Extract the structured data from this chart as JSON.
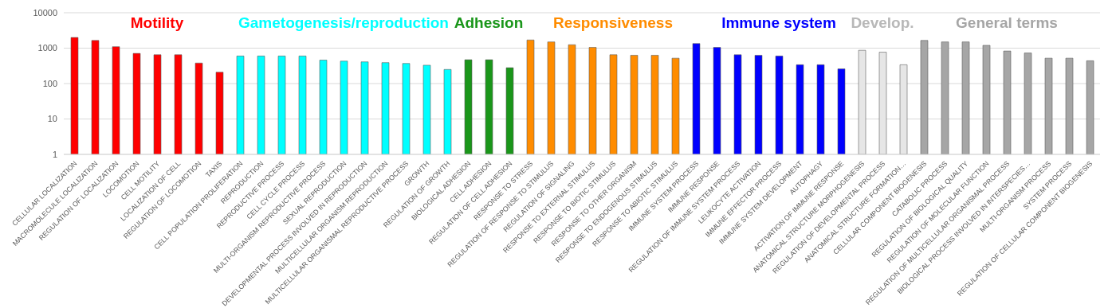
{
  "chart_data": {
    "type": "bar",
    "categories": [
      "CELLULAR LOCALIZATION",
      "MACROMOLECULE LOCALIZATION",
      "REGULATION OF LOCALIZATION",
      "LOCOMOTION",
      "CELL MOTILITY",
      "LOCALIZATION OF CELL",
      "REGULATION OF LOCOMOTION",
      "TAXIS",
      "CELL POPULATION PROLIFERATION",
      "REPRODUCTION",
      "REPRODUCTIVE PROCESS",
      "CELL CYCLE PROCESS",
      "MULTI-ORGANISM REPRODUCTIVE PROCESS",
      "SEXUAL REPRODUCTION",
      "DEVELOPMENTAL PROCESS INVOLVED IN REPRODUCTION",
      "MULTICELLULAR ORGANISM REPRODUCTION",
      "MULTICELLULAR ORGANISMAL REPRODUCTIVE PROCESS",
      "GROWTH",
      "REGULATION OF GROWTH",
      "BIOLOGICAL ADHESION",
      "CELL ADHESION",
      "REGULATION OF CELL ADHESION",
      "RESPONSE TO STRESS",
      "REGULATION OF RESPONSE TO STIMULUS",
      "REGULATION OF SIGNALING",
      "RESPONSE TO EXTERNAL STIMULUS",
      "RESPONSE TO BIOTIC STIMULUS",
      "RESPONSE TO OTHER ORGANISM",
      "RESPONSE TO ENDOGENOUS STIMULUS",
      "RESPONSE TO ABIOTIC STIMULUS",
      "IMMUNE SYSTEM PROCESS",
      "IMMUNE RESPONSE",
      "REGULATION OF IMMUNE SYSTEM PROCESS",
      "LEUKOCYTE ACTIVATION",
      "IMMUNE EFFECTOR PROCESS",
      "IMMUNE SYSTEM DEVELOPMENT",
      "AUTOPHAGY",
      "ACTIVATION OF IMMUNE RESPONSE",
      "ANATOMICAL STRUCTURE MORPHOGENESIS",
      "REGULATION OF DEVELOPMENTAL PROCESS",
      "ANATOMICAL STRUCTURE FORMATION…",
      "CELLULAR COMPONENT BIOGENESIS",
      "CATABOLIC PROCESS",
      "REGULATION OF BIOLOGICAL QUALITY",
      "REGULATION OF MOLECULAR FUNCTION",
      "REGULATION OF MULTICELLULAR ORGANISMAL PROCESS",
      "BIOLOGICAL PROCESS INVOLVED IN INTERSPECIES…",
      "MULTI-ORGANISM PROCESS",
      "SYSTEM PROCESS",
      "REGULATION OF CELLULAR COMPONENT BIOGENESIS"
    ],
    "values": [
      2000,
      1650,
      1100,
      710,
      650,
      650,
      380,
      210,
      600,
      600,
      600,
      600,
      460,
      430,
      410,
      390,
      370,
      330,
      250,
      470,
      470,
      280,
      1700,
      1500,
      1250,
      1050,
      650,
      630,
      630,
      520,
      1350,
      1050,
      650,
      630,
      600,
      340,
      340,
      260,
      870,
      770,
      340,
      1650,
      1500,
      1500,
      1200,
      830,
      730,
      520,
      520,
      440
    ],
    "colors": [
      "#ff0000",
      "#ff0000",
      "#ff0000",
      "#ff0000",
      "#ff0000",
      "#ff0000",
      "#ff0000",
      "#ff0000",
      "#00ffff",
      "#00ffff",
      "#00ffff",
      "#00ffff",
      "#00ffff",
      "#00ffff",
      "#00ffff",
      "#00ffff",
      "#00ffff",
      "#00ffff",
      "#00ffff",
      "#1a961a",
      "#1a961a",
      "#1a961a",
      "#ff8c00",
      "#ff8c00",
      "#ff8c00",
      "#ff8c00",
      "#ff8c00",
      "#ff8c00",
      "#ff8c00",
      "#ff8c00",
      "#0000ff",
      "#0000ff",
      "#0000ff",
      "#0000ff",
      "#0000ff",
      "#0000ff",
      "#0000ff",
      "#0000ff",
      "#e6e6e6",
      "#e6e6e6",
      "#e6e6e6",
      "#a6a6a6",
      "#a6a6a6",
      "#a6a6a6",
      "#a6a6a6",
      "#a6a6a6",
      "#a6a6a6",
      "#a6a6a6",
      "#a6a6a6",
      "#a6a6a6"
    ],
    "annotations": [
      "Motility",
      "Gametogenesis/reproduction",
      "Adhesion",
      "Responsiveness",
      "Immune system",
      "Develop.",
      "General terms"
    ],
    "ylim": [
      1,
      10000
    ],
    "yticks": [
      1,
      10,
      100,
      1000,
      10000
    ],
    "log": true,
    "grid": "y"
  }
}
